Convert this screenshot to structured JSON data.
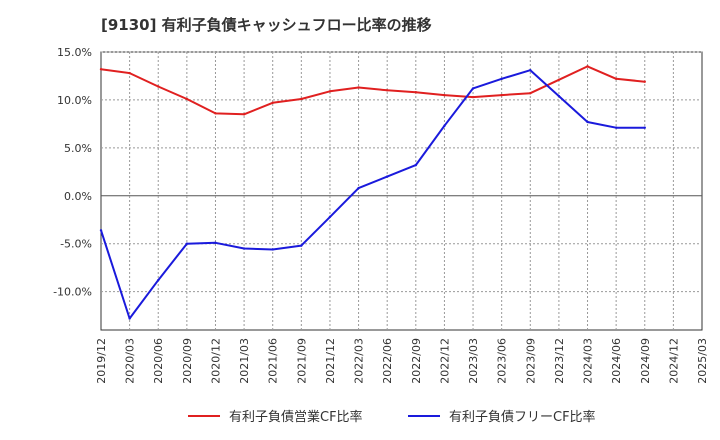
{
  "chart_data": {
    "type": "line",
    "title": "[9130]  有利子負債キャッシュフロー比率の推移",
    "xlabel": "",
    "ylabel": "",
    "categories": [
      "2019/12",
      "2020/03",
      "2020/06",
      "2020/09",
      "2020/12",
      "2021/03",
      "2021/06",
      "2021/09",
      "2021/12",
      "2022/03",
      "2022/06",
      "2022/09",
      "2022/12",
      "2023/03",
      "2023/06",
      "2023/09",
      "2023/12",
      "2024/03",
      "2024/06",
      "2024/09",
      "2024/12",
      "2025/03"
    ],
    "yticks": [
      "15.0%",
      "10.0%",
      "5.0%",
      "0.0%",
      "-5.0%",
      "-10.0%"
    ],
    "ytick_values": [
      15,
      10,
      5,
      0,
      -5,
      -10
    ],
    "ylim": [
      -14,
      15
    ],
    "grid": true,
    "legend_position": "bottom",
    "series": [
      {
        "name": "有利子負債営業CF比率",
        "color": "#e02020",
        "values": [
          13.2,
          12.8,
          11.4,
          10.1,
          8.6,
          8.5,
          9.7,
          10.1,
          10.9,
          11.3,
          11.0,
          10.8,
          10.5,
          10.3,
          10.5,
          10.7,
          12.1,
          13.5,
          12.2,
          11.9,
          null,
          null
        ]
      },
      {
        "name": "有利子負債フリーCF比率",
        "color": "#1a1adc",
        "values": [
          -3.6,
          -12.8,
          -8.8,
          -5.0,
          -4.9,
          -5.5,
          -5.6,
          -5.2,
          -2.2,
          0.8,
          2.0,
          3.2,
          7.3,
          11.2,
          12.2,
          13.1,
          10.4,
          7.7,
          7.1,
          7.1,
          null,
          null
        ]
      }
    ]
  }
}
